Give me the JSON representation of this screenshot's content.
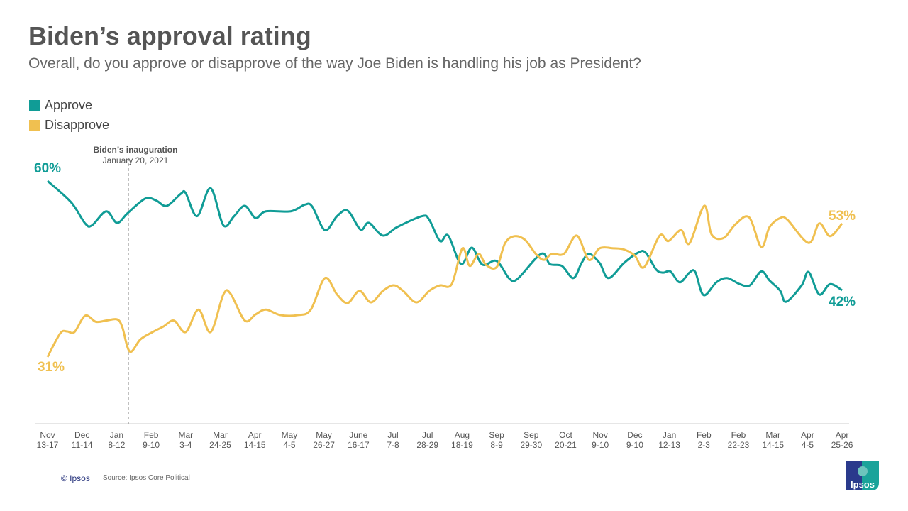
{
  "colors": {
    "approve": "#109c96",
    "disapprove": "#f0c050",
    "title": "#555555",
    "footer_copyright": "#23307a"
  },
  "header": {
    "title": "Biden’s approval rating",
    "subtitle": "Overall, do you approve or disapprove of the way Joe Biden is handling his job as President?"
  },
  "legend": [
    {
      "label": "Approve",
      "color": "#109c96"
    },
    {
      "label": "Disapprove",
      "color": "#f0c050"
    }
  ],
  "footer": {
    "copyright": "© Ipsos",
    "source": "Source: Ipsos Core Political",
    "logo_text": "Ipsos"
  },
  "chart_data": {
    "type": "line",
    "title": "Biden’s approval rating",
    "ylim": [
      20,
      63
    ],
    "grid": false,
    "legend_position": "top-left",
    "x_unit": "poll position (tick index)",
    "categories": [
      [
        "Nov",
        "13-17"
      ],
      [
        "Dec",
        "11-14"
      ],
      [
        "Jan",
        "8-12"
      ],
      [
        "Feb",
        "9-10"
      ],
      [
        "Mar",
        "3-4"
      ],
      [
        "Mar",
        "24-25"
      ],
      [
        "Apr",
        "14-15"
      ],
      [
        "May",
        "4-5"
      ],
      [
        "May",
        "26-27"
      ],
      [
        "June",
        "16-17"
      ],
      [
        "Jul",
        "7-8"
      ],
      [
        "Jul",
        "28-29"
      ],
      [
        "Aug",
        "18-19"
      ],
      [
        "Sep",
        "8-9"
      ],
      [
        "Sep",
        "29-30"
      ],
      [
        "Oct",
        "20-21"
      ],
      [
        "Nov",
        "9-10"
      ],
      [
        "Dec",
        "9-10"
      ],
      [
        "Jan",
        "12-13"
      ],
      [
        "Feb",
        "2-3"
      ],
      [
        "Feb",
        "22-23"
      ],
      [
        "Mar",
        "14-15"
      ],
      [
        "Apr",
        "4-5"
      ],
      [
        "Apr",
        "25-26"
      ]
    ],
    "annotation": {
      "title": "Biden’s inauguration",
      "subtitle": "January 20, 2021",
      "x": 2.34
    },
    "series": [
      {
        "name": "Approve",
        "color": "#109c96",
        "start_label": "60%",
        "end_label": "42%",
        "points": [
          [
            0,
            60
          ],
          [
            0.68,
            56.5
          ],
          [
            1.09,
            53
          ],
          [
            1.29,
            52.7
          ],
          [
            1.7,
            55
          ],
          [
            2.01,
            53.1
          ],
          [
            2.32,
            54.7
          ],
          [
            2.83,
            57.1
          ],
          [
            3.14,
            56.8
          ],
          [
            3.45,
            55.9
          ],
          [
            3.86,
            57.9
          ],
          [
            4.0,
            58
          ],
          [
            4.33,
            54.2
          ],
          [
            4.72,
            58.8
          ],
          [
            5.09,
            52.7
          ],
          [
            5.4,
            54.2
          ],
          [
            5.71,
            55.9
          ],
          [
            6.02,
            53.9
          ],
          [
            6.32,
            55
          ],
          [
            7.04,
            55
          ],
          [
            7.45,
            56.1
          ],
          [
            7.66,
            55.8
          ],
          [
            8.03,
            51.9
          ],
          [
            8.38,
            54.2
          ],
          [
            8.69,
            55.1
          ],
          [
            9.06,
            52
          ],
          [
            9.3,
            53.1
          ],
          [
            9.71,
            51
          ],
          [
            10.12,
            52.4
          ],
          [
            10.84,
            54.2
          ],
          [
            11.05,
            53.6
          ],
          [
            11.36,
            50.1
          ],
          [
            11.6,
            51
          ],
          [
            11.97,
            46.3
          ],
          [
            12.28,
            49
          ],
          [
            12.59,
            46.2
          ],
          [
            13.0,
            46.8
          ],
          [
            13.37,
            43.9
          ],
          [
            13.61,
            43.9
          ],
          [
            14.29,
            48
          ],
          [
            14.54,
            46.3
          ],
          [
            14.89,
            46
          ],
          [
            15.22,
            44
          ],
          [
            15.46,
            46.5
          ],
          [
            15.67,
            48
          ],
          [
            15.98,
            46.5
          ],
          [
            16.24,
            44
          ],
          [
            16.69,
            46.5
          ],
          [
            17.1,
            48.2
          ],
          [
            17.31,
            48.2
          ],
          [
            17.62,
            45.4
          ],
          [
            17.82,
            44.9
          ],
          [
            18.03,
            45.1
          ],
          [
            18.3,
            43.3
          ],
          [
            18.58,
            44.9
          ],
          [
            18.75,
            45
          ],
          [
            18.99,
            41.2
          ],
          [
            19.36,
            43.3
          ],
          [
            19.67,
            44
          ],
          [
            20.04,
            43
          ],
          [
            20.33,
            42.8
          ],
          [
            20.66,
            45.1
          ],
          [
            20.9,
            43.6
          ],
          [
            21.21,
            41.9
          ],
          [
            21.38,
            40.1
          ],
          [
            21.83,
            42.8
          ],
          [
            22.03,
            45
          ],
          [
            22.34,
            41.3
          ],
          [
            22.65,
            43
          ],
          [
            23.0,
            42
          ]
        ]
      },
      {
        "name": "Disapprove",
        "color": "#f0c050",
        "start_label": "31%",
        "end_label": "53%",
        "points": [
          [
            0,
            31
          ],
          [
            0.37,
            34.9
          ],
          [
            0.57,
            35.2
          ],
          [
            0.78,
            35.1
          ],
          [
            1.09,
            37.8
          ],
          [
            1.4,
            36.8
          ],
          [
            1.7,
            37
          ],
          [
            2.01,
            37.2
          ],
          [
            2.16,
            36
          ],
          [
            2.38,
            31.9
          ],
          [
            2.69,
            33.9
          ],
          [
            3.04,
            35.1
          ],
          [
            3.35,
            36
          ],
          [
            3.66,
            37
          ],
          [
            4.0,
            35.1
          ],
          [
            4.37,
            38.8
          ],
          [
            4.72,
            35.1
          ],
          [
            5.09,
            41.3
          ],
          [
            5.3,
            41.4
          ],
          [
            5.71,
            37
          ],
          [
            6.02,
            38
          ],
          [
            6.32,
            38.8
          ],
          [
            6.74,
            37.9
          ],
          [
            7.25,
            37.9
          ],
          [
            7.62,
            38.8
          ],
          [
            8.03,
            44
          ],
          [
            8.38,
            41.3
          ],
          [
            8.69,
            39.9
          ],
          [
            9.03,
            41.9
          ],
          [
            9.36,
            40
          ],
          [
            9.71,
            41.9
          ],
          [
            10.02,
            42.8
          ],
          [
            10.29,
            41.9
          ],
          [
            10.68,
            40
          ],
          [
            11.05,
            41.9
          ],
          [
            11.36,
            42.8
          ],
          [
            11.7,
            43
          ],
          [
            12.01,
            48.9
          ],
          [
            12.22,
            46
          ],
          [
            12.48,
            48
          ],
          [
            12.69,
            46.2
          ],
          [
            13.0,
            45.8
          ],
          [
            13.24,
            49.7
          ],
          [
            13.51,
            50.9
          ],
          [
            13.82,
            50.3
          ],
          [
            14.13,
            48
          ],
          [
            14.37,
            47
          ],
          [
            14.6,
            48
          ],
          [
            14.95,
            48
          ],
          [
            15.32,
            51
          ],
          [
            15.67,
            47
          ],
          [
            15.98,
            48.9
          ],
          [
            16.39,
            48.9
          ],
          [
            16.69,
            48.7
          ],
          [
            17.0,
            47.7
          ],
          [
            17.27,
            45.8
          ],
          [
            17.72,
            51
          ],
          [
            17.97,
            50.1
          ],
          [
            18.34,
            51.9
          ],
          [
            18.58,
            49.7
          ],
          [
            19.01,
            55.9
          ],
          [
            19.22,
            51.2
          ],
          [
            19.57,
            50.6
          ],
          [
            19.92,
            52.9
          ],
          [
            20.31,
            54
          ],
          [
            20.66,
            49.1
          ],
          [
            20.9,
            52.4
          ],
          [
            21.21,
            53.9
          ],
          [
            21.42,
            53.6
          ],
          [
            22.03,
            49.8
          ],
          [
            22.34,
            53
          ],
          [
            22.65,
            50.9
          ],
          [
            23.0,
            53
          ]
        ]
      }
    ]
  }
}
